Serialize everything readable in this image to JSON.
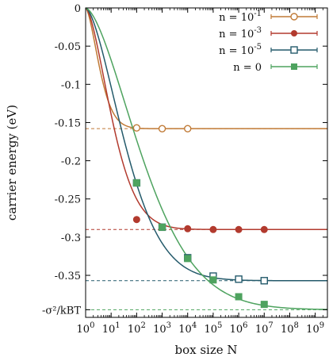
{
  "chart_data": {
    "type": "scatter",
    "title": "",
    "xlabel": "box size N",
    "ylabel": "carrier energy (eV)",
    "x_scale": "log10",
    "xlim": [
      1,
      3000000000
    ],
    "ylim": [
      -0.405,
      0
    ],
    "grid": false,
    "legend_position": "top-right",
    "x_ticks": [
      {
        "value": 1,
        "label": "10^0"
      },
      {
        "value": 10,
        "label": "10^1"
      },
      {
        "value": 100,
        "label": "10^2"
      },
      {
        "value": 1000,
        "label": "10^3"
      },
      {
        "value": 10000,
        "label": "10^4"
      },
      {
        "value": 100000,
        "label": "10^5"
      },
      {
        "value": 1000000,
        "label": "10^6"
      },
      {
        "value": 10000000,
        "label": "10^7"
      },
      {
        "value": 100000000,
        "label": "10^8"
      },
      {
        "value": 1000000000,
        "label": "10^9"
      }
    ],
    "y_ticks": [
      {
        "value": 0,
        "label": "0"
      },
      {
        "value": -0.05,
        "label": "-0.05"
      },
      {
        "value": -0.1,
        "label": "-0.1"
      },
      {
        "value": -0.15,
        "label": "-0.15"
      },
      {
        "value": -0.2,
        "label": "-0.2"
      },
      {
        "value": -0.25,
        "label": "-0.25"
      },
      {
        "value": -0.3,
        "label": "-0.3"
      },
      {
        "value": -0.35,
        "label": "-0.35"
      },
      {
        "value": -0.395,
        "label": "-σ²/kBT"
      }
    ],
    "series": [
      {
        "name": "n = 10^-1",
        "color": "#c07a36",
        "marker": "circle-open",
        "x": [
          100,
          1000,
          10000
        ],
        "y": [
          -0.157,
          -0.158,
          -0.158
        ],
        "asymptote": -0.158,
        "curve": {
          "start": 0,
          "asymptote": -0.158,
          "scale": 1.6
        }
      },
      {
        "name": "n = 10^-3",
        "color": "#b23a2e",
        "marker": "circle-filled",
        "x": [
          100,
          1000,
          10000,
          100000,
          1000000,
          10000000
        ],
        "y": [
          -0.277,
          -0.287,
          -0.289,
          -0.29,
          -0.29,
          -0.29
        ],
        "asymptote": -0.29,
        "curve": {
          "start": 0,
          "asymptote": -0.29,
          "scale": 3.0
        }
      },
      {
        "name": "n = 10^-5",
        "color": "#245a6b",
        "marker": "square-open",
        "x": [
          100,
          1000,
          10000,
          100000,
          1000000,
          10000000
        ],
        "y": [
          -0.229,
          -0.287,
          -0.327,
          -0.351,
          -0.355,
          -0.357
        ],
        "asymptote": -0.357,
        "curve": {
          "start": 0,
          "asymptote": -0.357,
          "scale": 4.5
        }
      },
      {
        "name": "n = 0",
        "color": "#4ea35f",
        "marker": "square-filled",
        "x": [
          100,
          1000,
          10000,
          100000,
          1000000,
          10000000
        ],
        "y": [
          -0.229,
          -0.287,
          -0.328,
          -0.356,
          -0.378,
          -0.388
        ],
        "asymptote": -0.395,
        "curve": {
          "start": 0,
          "asymptote": -0.395,
          "scale": 6.5
        }
      }
    ]
  }
}
